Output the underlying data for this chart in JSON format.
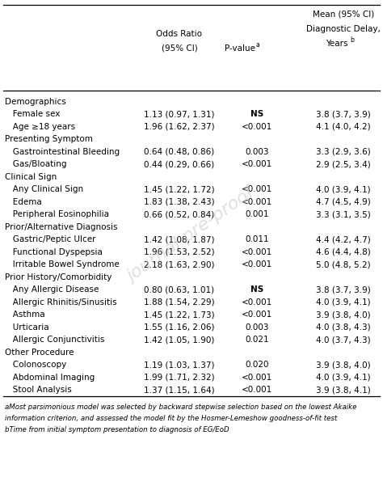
{
  "rows": [
    {
      "label": "Demographics",
      "indent": 0,
      "bold": false,
      "or": "",
      "pval": "",
      "mean": ""
    },
    {
      "label": "   Female sex",
      "indent": 1,
      "bold": false,
      "or": "1.13 (0.97, 1.31)",
      "pval": "NS",
      "mean": "3.8 (3.7, 3.9)"
    },
    {
      "label": "   Age ≥18 years",
      "indent": 1,
      "bold": false,
      "or": "1.96 (1.62, 2.37)",
      "pval": "<0.001",
      "mean": "4.1 (4.0, 4.2)"
    },
    {
      "label": "Presenting Symptom",
      "indent": 0,
      "bold": false,
      "or": "",
      "pval": "",
      "mean": ""
    },
    {
      "label": "   Gastrointestinal Bleeding",
      "indent": 1,
      "bold": false,
      "or": "0.64 (0.48, 0.86)",
      "pval": "0.003",
      "mean": "3.3 (2.9, 3.6)"
    },
    {
      "label": "   Gas/Bloating",
      "indent": 1,
      "bold": false,
      "or": "0.44 (0.29, 0.66)",
      "pval": "<0.001",
      "mean": "2.9 (2.5, 3.4)"
    },
    {
      "label": "Clinical Sign",
      "indent": 0,
      "bold": false,
      "or": "",
      "pval": "",
      "mean": ""
    },
    {
      "label": "   Any Clinical Sign",
      "indent": 1,
      "bold": false,
      "or": "1.45 (1.22, 1.72)",
      "pval": "<0.001",
      "mean": "4.0 (3.9, 4.1)"
    },
    {
      "label": "   Edema",
      "indent": 1,
      "bold": false,
      "or": "1.83 (1.38, 2.43)",
      "pval": "<0.001",
      "mean": "4.7 (4.5, 4.9)"
    },
    {
      "label": "   Peripheral Eosinophilia",
      "indent": 1,
      "bold": false,
      "or": "0.66 (0.52, 0.84)",
      "pval": "0.001",
      "mean": "3.3 (3.1, 3.5)"
    },
    {
      "label": "Prior/Alternative Diagnosis",
      "indent": 0,
      "bold": false,
      "or": "",
      "pval": "",
      "mean": ""
    },
    {
      "label": "   Gastric/Peptic Ulcer",
      "indent": 1,
      "bold": false,
      "or": "1.42 (1.08, 1.87)",
      "pval": "0.011",
      "mean": "4.4 (4.2, 4.7)"
    },
    {
      "label": "   Functional Dyspepsia",
      "indent": 1,
      "bold": false,
      "or": "1.96 (1.53, 2.52)",
      "pval": "<0.001",
      "mean": "4.6 (4.4, 4.8)"
    },
    {
      "label": "   Irritable Bowel Syndrome",
      "indent": 1,
      "bold": false,
      "or": "2.18 (1.63, 2.90)",
      "pval": "<0.001",
      "mean": "5.0 (4.8, 5.2)"
    },
    {
      "label": "Prior History/Comorbidity",
      "indent": 0,
      "bold": false,
      "or": "",
      "pval": "",
      "mean": ""
    },
    {
      "label": "   Any Allergic Disease",
      "indent": 1,
      "bold": false,
      "or": "0.80 (0.63, 1.01)",
      "pval": "NS",
      "mean": "3.8 (3.7, 3.9)"
    },
    {
      "label": "   Allergic Rhinitis/Sinusitis",
      "indent": 1,
      "bold": false,
      "or": "1.88 (1.54, 2.29)",
      "pval": "<0.001",
      "mean": "4.0 (3.9, 4.1)"
    },
    {
      "label": "   Asthma",
      "indent": 1,
      "bold": false,
      "or": "1.45 (1.22, 1.73)",
      "pval": "<0.001",
      "mean": "3.9 (3.8, 4.0)"
    },
    {
      "label": "   Urticaria",
      "indent": 1,
      "bold": false,
      "or": "1.55 (1.16, 2.06)",
      "pval": "0.003",
      "mean": "4.0 (3.8, 4.3)"
    },
    {
      "label": "   Allergic Conjunctivitis",
      "indent": 1,
      "bold": false,
      "or": "1.42 (1.05, 1.90)",
      "pval": "0.021",
      "mean": "4.0 (3.7, 4.3)"
    },
    {
      "label": "Other Procedure",
      "indent": 0,
      "bold": false,
      "or": "",
      "pval": "",
      "mean": ""
    },
    {
      "label": "   Colonoscopy",
      "indent": 1,
      "bold": false,
      "or": "1.19 (1.03, 1.37)",
      "pval": "0.020",
      "mean": "3.9 (3.8, 4.0)"
    },
    {
      "label": "   Abdominal Imaging",
      "indent": 1,
      "bold": false,
      "or": "1.99 (1.71, 2.32)",
      "pval": "<0.001",
      "mean": "4.0 (3.9, 4.1)"
    },
    {
      "label": "   Stool Analysis",
      "indent": 1,
      "bold": false,
      "or": "1.37 (1.15, 1.64)",
      "pval": "<0.001",
      "mean": "3.9 (3.8, 4.1)"
    }
  ],
  "footnote1a": "aMost parsimonious model was selected by backward stepwise selection based on the lowest Akaike",
  "footnote1b": "information criterion, and assessed the model fit by the Hosmer-Lemeshow goodness-of-fit test",
  "footnote2": "bTime from initial symptom presentation to diagnosis of EG/EoD",
  "bg_color": "#ffffff",
  "text_color": "#000000",
  "watermark": "journal pre-proof"
}
